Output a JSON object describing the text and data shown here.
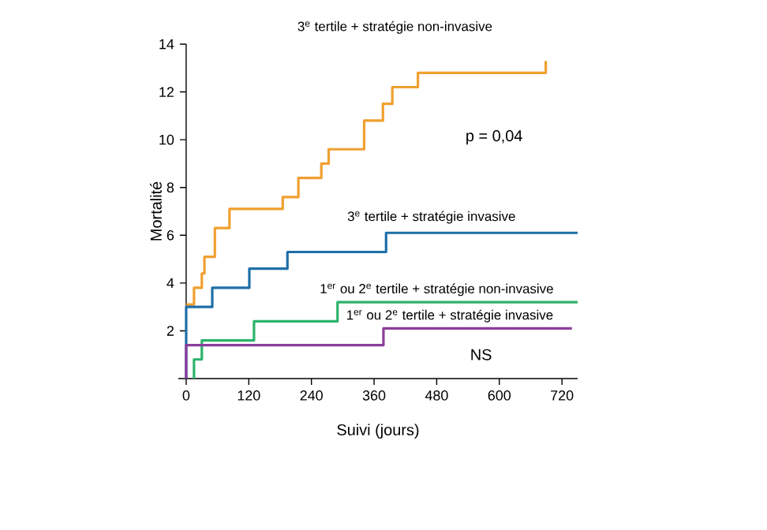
{
  "chart_data": {
    "type": "step",
    "xlabel": "Suivi (jours)",
    "ylabel": "Mortalité",
    "xlim": [
      -15,
      750
    ],
    "ylim": [
      0,
      14
    ],
    "xticks": [
      0,
      120,
      240,
      360,
      480,
      600,
      720
    ],
    "yticks": [
      2,
      4,
      6,
      8,
      10,
      12,
      14
    ],
    "grid": false,
    "legend": false,
    "line_style": "solid",
    "marker": "none",
    "series": [
      {
        "name": "3$^{e}$ tertile + stratégie non-invasive",
        "color": "#f0a030",
        "x": [
          0,
          15,
          30,
          35,
          55,
          83,
          185,
          215,
          259,
          273,
          341,
          377,
          395,
          444,
          689
        ],
        "values": [
          3.1,
          3.8,
          4.4,
          5.1,
          6.3,
          7.1,
          7.6,
          8.4,
          9.0,
          9.6,
          10.8,
          11.5,
          12.2,
          12.8,
          13.3
        ]
      },
      {
        "name": "3$^{e}$ tertile + stratégie invasive",
        "color": "#1f6fa8",
        "x": [
          0,
          0,
          50,
          121,
          194,
          383,
          750
        ],
        "values": [
          0,
          3.0,
          3.8,
          4.6,
          5.3,
          6.1,
          6.1
        ]
      },
      {
        "name": "1$^{er}$ ou 2$^{e}$ tertile + stratégie non-invasive",
        "color": "#2db36a",
        "x": [
          15,
          15,
          30,
          130,
          290,
          750
        ],
        "values": [
          0,
          0.8,
          1.6,
          2.4,
          3.2,
          3.2
        ]
      },
      {
        "name": "1$^{er}$ ou 2$^{e}$ tertile + stratégie invasive",
        "color": "#8b3d9a",
        "x": [
          0,
          0,
          378,
          739
        ],
        "values": [
          0,
          1.4,
          2.1,
          2.1
        ]
      }
    ],
    "annotations": [
      "p = 0,04",
      "NS"
    ]
  }
}
